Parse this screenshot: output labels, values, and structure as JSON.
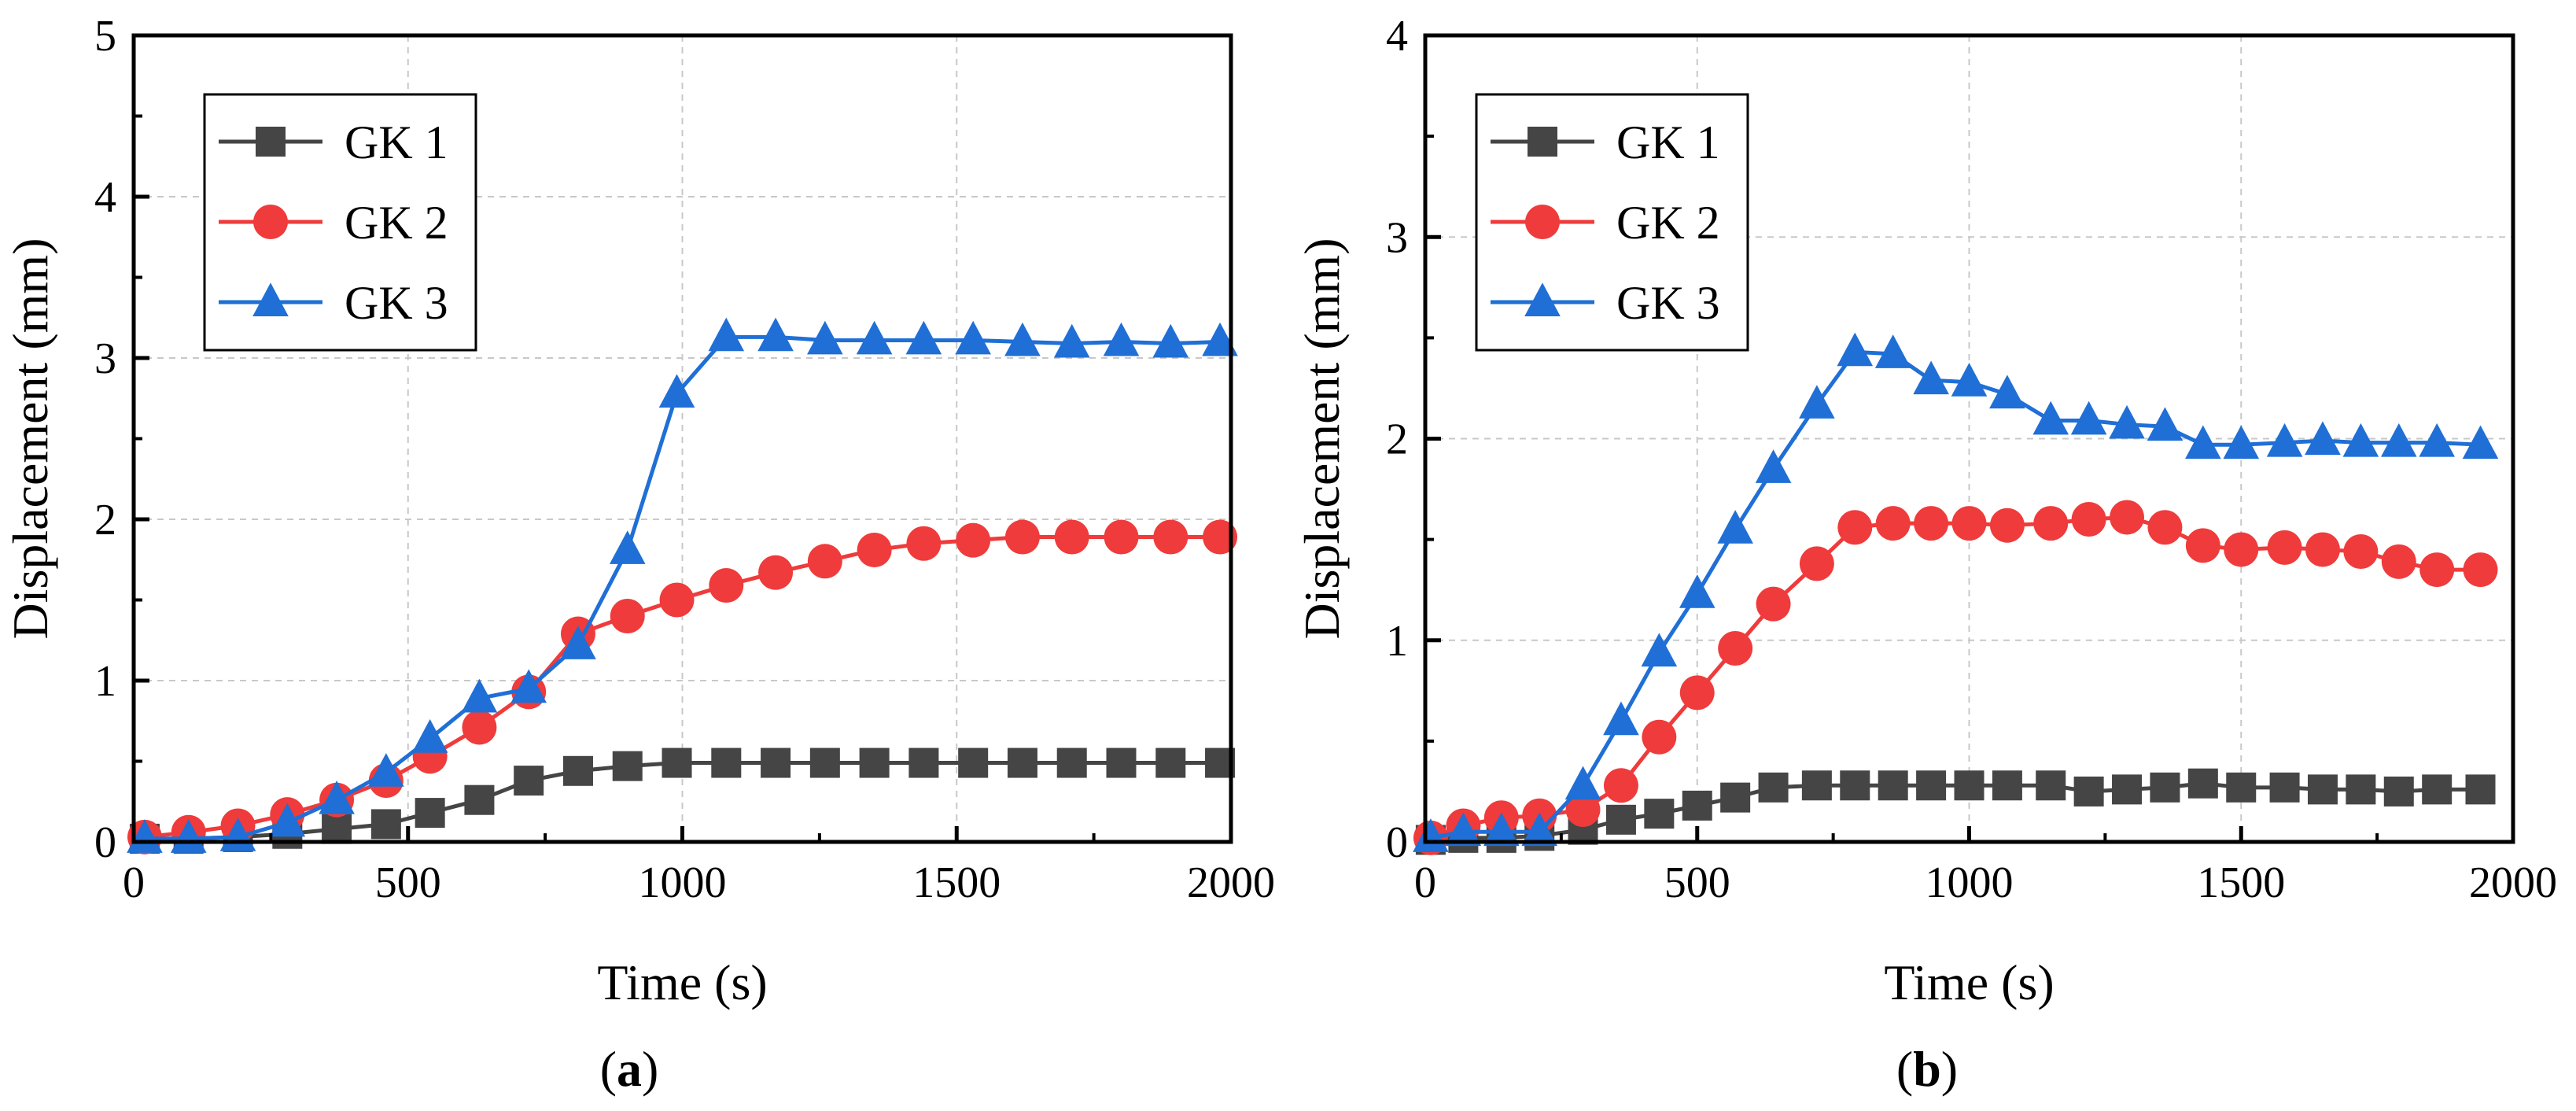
{
  "colors": {
    "GK 1": "#454545",
    "GK 2": "#ef3b3b",
    "GK 3": "#1f6fd6"
  },
  "chart_data": [
    {
      "type": "line",
      "panel_label": "a",
      "xlabel": "Time (s)",
      "ylabel": "Displacement (mm)",
      "xlim": [
        0,
        2000
      ],
      "ylim": [
        0,
        5
      ],
      "xticks": [
        "0",
        "500",
        "1000",
        "1500",
        "2000"
      ],
      "yticks": [
        "0",
        "1",
        "2",
        "3",
        "4",
        "5"
      ],
      "grid": true,
      "legend_position": "top-left",
      "series": [
        {
          "name": "GK 1",
          "marker": "square",
          "x": [
            20,
            100,
            190,
            280,
            370,
            460,
            540,
            630,
            720,
            810,
            900,
            990,
            1080,
            1170,
            1260,
            1350,
            1440,
            1530,
            1620,
            1710,
            1800,
            1890,
            1980
          ],
          "y": [
            0.02,
            0.02,
            0.03,
            0.05,
            0.08,
            0.11,
            0.18,
            0.26,
            0.38,
            0.44,
            0.47,
            0.49,
            0.49,
            0.49,
            0.49,
            0.49,
            0.49,
            0.49,
            0.49,
            0.49,
            0.49,
            0.49,
            0.49
          ]
        },
        {
          "name": "GK 2",
          "marker": "circle",
          "x": [
            20,
            100,
            190,
            280,
            370,
            460,
            540,
            630,
            720,
            810,
            900,
            990,
            1080,
            1170,
            1260,
            1350,
            1440,
            1530,
            1620,
            1710,
            1800,
            1890,
            1980
          ],
          "y": [
            0.03,
            0.06,
            0.1,
            0.17,
            0.26,
            0.38,
            0.53,
            0.71,
            0.93,
            1.29,
            1.4,
            1.5,
            1.59,
            1.67,
            1.74,
            1.81,
            1.85,
            1.87,
            1.89,
            1.89,
            1.89,
            1.89,
            1.89
          ]
        },
        {
          "name": "GK 3",
          "marker": "triangle",
          "x": [
            20,
            100,
            190,
            280,
            370,
            460,
            540,
            630,
            720,
            810,
            900,
            990,
            1080,
            1170,
            1260,
            1350,
            1440,
            1530,
            1620,
            1710,
            1800,
            1890,
            1980
          ],
          "y": [
            0.02,
            0.02,
            0.03,
            0.12,
            0.26,
            0.43,
            0.64,
            0.89,
            0.95,
            1.22,
            1.81,
            2.78,
            3.13,
            3.13,
            3.11,
            3.11,
            3.11,
            3.11,
            3.1,
            3.09,
            3.1,
            3.09,
            3.1
          ]
        }
      ]
    },
    {
      "type": "line",
      "panel_label": "b",
      "xlabel": "Time (s)",
      "ylabel": "Displacement (mm)",
      "xlim": [
        0,
        2000
      ],
      "ylim": [
        0,
        4
      ],
      "xticks": [
        "0",
        "500",
        "1000",
        "1500",
        "2000"
      ],
      "yticks": [
        "0",
        "1",
        "2",
        "3",
        "4"
      ],
      "grid": true,
      "legend_position": "top-left",
      "series": [
        {
          "name": "GK 1",
          "marker": "square",
          "x": [
            10,
            70,
            140,
            210,
            290,
            360,
            430,
            500,
            570,
            640,
            720,
            790,
            860,
            930,
            1000,
            1070,
            1150,
            1220,
            1290,
            1360,
            1430,
            1500,
            1580,
            1650,
            1720,
            1790,
            1860,
            1940
          ],
          "y": [
            0.01,
            0.02,
            0.02,
            0.03,
            0.06,
            0.11,
            0.14,
            0.18,
            0.22,
            0.27,
            0.28,
            0.28,
            0.28,
            0.28,
            0.28,
            0.28,
            0.28,
            0.25,
            0.26,
            0.27,
            0.29,
            0.27,
            0.27,
            0.26,
            0.26,
            0.25,
            0.26,
            0.26
          ]
        },
        {
          "name": "GK 2",
          "marker": "circle",
          "x": [
            10,
            70,
            140,
            210,
            290,
            360,
            430,
            500,
            570,
            640,
            720,
            790,
            860,
            930,
            1000,
            1070,
            1150,
            1220,
            1290,
            1360,
            1430,
            1500,
            1580,
            1650,
            1720,
            1790,
            1860,
            1940
          ],
          "y": [
            0.02,
            0.08,
            0.12,
            0.13,
            0.16,
            0.28,
            0.52,
            0.74,
            0.96,
            1.18,
            1.38,
            1.56,
            1.58,
            1.58,
            1.58,
            1.57,
            1.58,
            1.6,
            1.61,
            1.56,
            1.47,
            1.45,
            1.46,
            1.45,
            1.44,
            1.39,
            1.35,
            1.35
          ]
        },
        {
          "name": "GK 3",
          "marker": "triangle",
          "x": [
            10,
            70,
            140,
            210,
            290,
            360,
            430,
            500,
            570,
            640,
            720,
            790,
            860,
            930,
            1000,
            1070,
            1150,
            1220,
            1290,
            1360,
            1430,
            1500,
            1580,
            1650,
            1720,
            1790,
            1860,
            1940
          ],
          "y": [
            0.02,
            0.05,
            0.05,
            0.05,
            0.28,
            0.6,
            0.94,
            1.23,
            1.55,
            1.85,
            2.17,
            2.43,
            2.42,
            2.29,
            2.28,
            2.22,
            2.09,
            2.09,
            2.07,
            2.06,
            1.97,
            1.97,
            1.98,
            1.99,
            1.98,
            1.98,
            1.98,
            1.97
          ]
        }
      ]
    }
  ]
}
